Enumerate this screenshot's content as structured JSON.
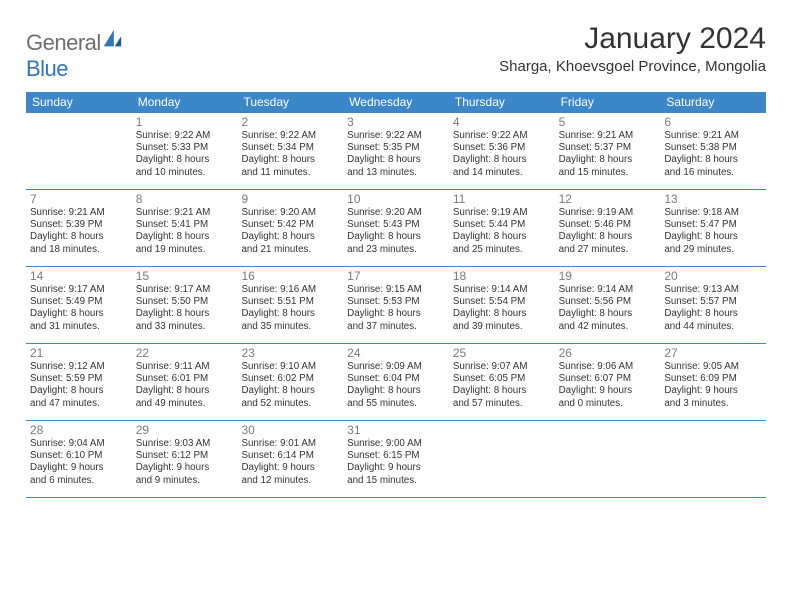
{
  "brand": {
    "text1": "General",
    "text2": "Blue"
  },
  "title": "January 2024",
  "location": "Sharga, Khoevsgoel Province, Mongolia",
  "weekdays": [
    "Sunday",
    "Monday",
    "Tuesday",
    "Wednesday",
    "Thursday",
    "Friday",
    "Saturday"
  ],
  "colors": {
    "header_bg": "#3b87c8",
    "header_text": "#ffffff",
    "rule": "#3b87c8",
    "daynum": "#7a7a7a",
    "body_text": "#333333",
    "logo_gray": "#6e6e6e",
    "logo_blue": "#2f77bc"
  },
  "weeks": [
    [
      null,
      {
        "n": "1",
        "sr": "Sunrise: 9:22 AM",
        "ss": "Sunset: 5:33 PM",
        "d1": "Daylight: 8 hours",
        "d2": "and 10 minutes."
      },
      {
        "n": "2",
        "sr": "Sunrise: 9:22 AM",
        "ss": "Sunset: 5:34 PM",
        "d1": "Daylight: 8 hours",
        "d2": "and 11 minutes."
      },
      {
        "n": "3",
        "sr": "Sunrise: 9:22 AM",
        "ss": "Sunset: 5:35 PM",
        "d1": "Daylight: 8 hours",
        "d2": "and 13 minutes."
      },
      {
        "n": "4",
        "sr": "Sunrise: 9:22 AM",
        "ss": "Sunset: 5:36 PM",
        "d1": "Daylight: 8 hours",
        "d2": "and 14 minutes."
      },
      {
        "n": "5",
        "sr": "Sunrise: 9:21 AM",
        "ss": "Sunset: 5:37 PM",
        "d1": "Daylight: 8 hours",
        "d2": "and 15 minutes."
      },
      {
        "n": "6",
        "sr": "Sunrise: 9:21 AM",
        "ss": "Sunset: 5:38 PM",
        "d1": "Daylight: 8 hours",
        "d2": "and 16 minutes."
      }
    ],
    [
      {
        "n": "7",
        "sr": "Sunrise: 9:21 AM",
        "ss": "Sunset: 5:39 PM",
        "d1": "Daylight: 8 hours",
        "d2": "and 18 minutes."
      },
      {
        "n": "8",
        "sr": "Sunrise: 9:21 AM",
        "ss": "Sunset: 5:41 PM",
        "d1": "Daylight: 8 hours",
        "d2": "and 19 minutes."
      },
      {
        "n": "9",
        "sr": "Sunrise: 9:20 AM",
        "ss": "Sunset: 5:42 PM",
        "d1": "Daylight: 8 hours",
        "d2": "and 21 minutes."
      },
      {
        "n": "10",
        "sr": "Sunrise: 9:20 AM",
        "ss": "Sunset: 5:43 PM",
        "d1": "Daylight: 8 hours",
        "d2": "and 23 minutes."
      },
      {
        "n": "11",
        "sr": "Sunrise: 9:19 AM",
        "ss": "Sunset: 5:44 PM",
        "d1": "Daylight: 8 hours",
        "d2": "and 25 minutes."
      },
      {
        "n": "12",
        "sr": "Sunrise: 9:19 AM",
        "ss": "Sunset: 5:46 PM",
        "d1": "Daylight: 8 hours",
        "d2": "and 27 minutes."
      },
      {
        "n": "13",
        "sr": "Sunrise: 9:18 AM",
        "ss": "Sunset: 5:47 PM",
        "d1": "Daylight: 8 hours",
        "d2": "and 29 minutes."
      }
    ],
    [
      {
        "n": "14",
        "sr": "Sunrise: 9:17 AM",
        "ss": "Sunset: 5:49 PM",
        "d1": "Daylight: 8 hours",
        "d2": "and 31 minutes."
      },
      {
        "n": "15",
        "sr": "Sunrise: 9:17 AM",
        "ss": "Sunset: 5:50 PM",
        "d1": "Daylight: 8 hours",
        "d2": "and 33 minutes."
      },
      {
        "n": "16",
        "sr": "Sunrise: 9:16 AM",
        "ss": "Sunset: 5:51 PM",
        "d1": "Daylight: 8 hours",
        "d2": "and 35 minutes."
      },
      {
        "n": "17",
        "sr": "Sunrise: 9:15 AM",
        "ss": "Sunset: 5:53 PM",
        "d1": "Daylight: 8 hours",
        "d2": "and 37 minutes."
      },
      {
        "n": "18",
        "sr": "Sunrise: 9:14 AM",
        "ss": "Sunset: 5:54 PM",
        "d1": "Daylight: 8 hours",
        "d2": "and 39 minutes."
      },
      {
        "n": "19",
        "sr": "Sunrise: 9:14 AM",
        "ss": "Sunset: 5:56 PM",
        "d1": "Daylight: 8 hours",
        "d2": "and 42 minutes."
      },
      {
        "n": "20",
        "sr": "Sunrise: 9:13 AM",
        "ss": "Sunset: 5:57 PM",
        "d1": "Daylight: 8 hours",
        "d2": "and 44 minutes."
      }
    ],
    [
      {
        "n": "21",
        "sr": "Sunrise: 9:12 AM",
        "ss": "Sunset: 5:59 PM",
        "d1": "Daylight: 8 hours",
        "d2": "and 47 minutes."
      },
      {
        "n": "22",
        "sr": "Sunrise: 9:11 AM",
        "ss": "Sunset: 6:01 PM",
        "d1": "Daylight: 8 hours",
        "d2": "and 49 minutes."
      },
      {
        "n": "23",
        "sr": "Sunrise: 9:10 AM",
        "ss": "Sunset: 6:02 PM",
        "d1": "Daylight: 8 hours",
        "d2": "and 52 minutes."
      },
      {
        "n": "24",
        "sr": "Sunrise: 9:09 AM",
        "ss": "Sunset: 6:04 PM",
        "d1": "Daylight: 8 hours",
        "d2": "and 55 minutes."
      },
      {
        "n": "25",
        "sr": "Sunrise: 9:07 AM",
        "ss": "Sunset: 6:05 PM",
        "d1": "Daylight: 8 hours",
        "d2": "and 57 minutes."
      },
      {
        "n": "26",
        "sr": "Sunrise: 9:06 AM",
        "ss": "Sunset: 6:07 PM",
        "d1": "Daylight: 9 hours",
        "d2": "and 0 minutes."
      },
      {
        "n": "27",
        "sr": "Sunrise: 9:05 AM",
        "ss": "Sunset: 6:09 PM",
        "d1": "Daylight: 9 hours",
        "d2": "and 3 minutes."
      }
    ],
    [
      {
        "n": "28",
        "sr": "Sunrise: 9:04 AM",
        "ss": "Sunset: 6:10 PM",
        "d1": "Daylight: 9 hours",
        "d2": "and 6 minutes."
      },
      {
        "n": "29",
        "sr": "Sunrise: 9:03 AM",
        "ss": "Sunset: 6:12 PM",
        "d1": "Daylight: 9 hours",
        "d2": "and 9 minutes."
      },
      {
        "n": "30",
        "sr": "Sunrise: 9:01 AM",
        "ss": "Sunset: 6:14 PM",
        "d1": "Daylight: 9 hours",
        "d2": "and 12 minutes."
      },
      {
        "n": "31",
        "sr": "Sunrise: 9:00 AM",
        "ss": "Sunset: 6:15 PM",
        "d1": "Daylight: 9 hours",
        "d2": "and 15 minutes."
      },
      null,
      null,
      null
    ]
  ]
}
